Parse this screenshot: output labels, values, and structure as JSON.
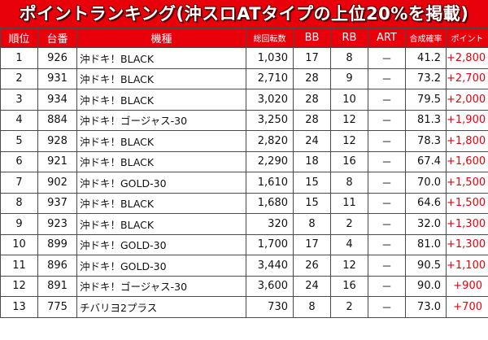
{
  "title": "ポイントランキング(沖スロATタイプの上位20%を掲載)",
  "header": {
    "rank": "順位",
    "machine_no": "台番",
    "model": "機種",
    "total_spins": "総回転数",
    "bb": "BB",
    "rb": "RB",
    "art": "ART",
    "combined_prob": "合成確率",
    "points": "ポイント"
  },
  "rows": [
    {
      "rank": "1",
      "machine_no": "926",
      "model": "沖ドキ！BLACK",
      "total_spins": "1,030",
      "bb": "17",
      "rb": "8",
      "art": "－",
      "combined_prob": "41.2",
      "points": "+2,800"
    },
    {
      "rank": "2",
      "machine_no": "931",
      "model": "沖ドキ！BLACK",
      "total_spins": "2,710",
      "bb": "28",
      "rb": "9",
      "art": "－",
      "combined_prob": "73.2",
      "points": "+2,700"
    },
    {
      "rank": "3",
      "machine_no": "934",
      "model": "沖ドキ！BLACK",
      "total_spins": "3,020",
      "bb": "28",
      "rb": "10",
      "art": "－",
      "combined_prob": "79.5",
      "points": "+2,000"
    },
    {
      "rank": "4",
      "machine_no": "884",
      "model": "沖ドキ！ゴージャス-30",
      "total_spins": "3,250",
      "bb": "28",
      "rb": "12",
      "art": "－",
      "combined_prob": "81.3",
      "points": "+1,900"
    },
    {
      "rank": "5",
      "machine_no": "928",
      "model": "沖ドキ！BLACK",
      "total_spins": "2,820",
      "bb": "24",
      "rb": "12",
      "art": "－",
      "combined_prob": "78.3",
      "points": "+1,800"
    },
    {
      "rank": "6",
      "machine_no": "921",
      "model": "沖ドキ！BLACK",
      "total_spins": "2,290",
      "bb": "18",
      "rb": "16",
      "art": "－",
      "combined_prob": "67.4",
      "points": "+1,600"
    },
    {
      "rank": "7",
      "machine_no": "902",
      "model": "沖ドキ！GOLD-30",
      "total_spins": "1,610",
      "bb": "15",
      "rb": "8",
      "art": "－",
      "combined_prob": "70.0",
      "points": "+1,500"
    },
    {
      "rank": "8",
      "machine_no": "937",
      "model": "沖ドキ！BLACK",
      "total_spins": "1,680",
      "bb": "15",
      "rb": "11",
      "art": "－",
      "combined_prob": "64.6",
      "points": "+1,500"
    },
    {
      "rank": "9",
      "machine_no": "923",
      "model": "沖ドキ！BLACK",
      "total_spins": "320",
      "bb": "8",
      "rb": "2",
      "art": "－",
      "combined_prob": "32.0",
      "points": "+1,300"
    },
    {
      "rank": "10",
      "machine_no": "899",
      "model": "沖ドキ！GOLD-30",
      "total_spins": "1,700",
      "bb": "17",
      "rb": "4",
      "art": "－",
      "combined_prob": "81.0",
      "points": "+1,300"
    },
    {
      "rank": "11",
      "machine_no": "896",
      "model": "沖ドキ！GOLD-30",
      "total_spins": "3,440",
      "bb": "26",
      "rb": "12",
      "art": "－",
      "combined_prob": "90.5",
      "points": "+1,100"
    },
    {
      "rank": "12",
      "machine_no": "891",
      "model": "沖ドキ！ゴージャス-30",
      "total_spins": "3,600",
      "bb": "24",
      "rb": "16",
      "art": "－",
      "combined_prob": "90.0",
      "points": "+900"
    },
    {
      "rank": "13",
      "machine_no": "775",
      "model": "チバリヨ2プラス",
      "total_spins": "730",
      "bb": "8",
      "rb": "2",
      "art": "－",
      "combined_prob": "73.0",
      "points": "+700"
    }
  ],
  "colors": {
    "accent": "#e8000b",
    "points_text": "#e8000b",
    "border": "#4a4a4a"
  }
}
